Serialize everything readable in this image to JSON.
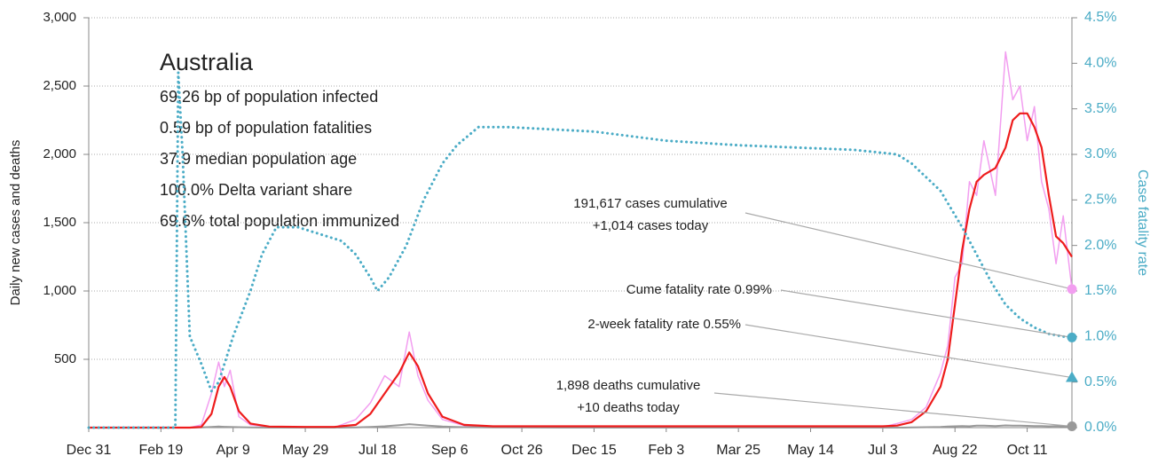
{
  "chart_data": {
    "type": "line",
    "title": "Australia",
    "info": [
      "69.26 bp of population infected",
      "0.59 bp of population fatalities",
      "37.9 median population age",
      "100.0% Delta variant share",
      "69.6% total population immunized"
    ],
    "ylabel": "Daily new cases and deaths",
    "y2label": "Case fatality rate",
    "xlim": [
      0,
      681
    ],
    "xticks": [
      {
        "value": 0,
        "label": "Dec 31"
      },
      {
        "value": 50,
        "label": "Feb 19"
      },
      {
        "value": 100,
        "label": "Apr 9"
      },
      {
        "value": 150,
        "label": "May 29"
      },
      {
        "value": 200,
        "label": "Jul 18"
      },
      {
        "value": 250,
        "label": "Sep 6"
      },
      {
        "value": 300,
        "label": "Oct 26"
      },
      {
        "value": 350,
        "label": "Dec 15"
      },
      {
        "value": 400,
        "label": "Feb 3"
      },
      {
        "value": 450,
        "label": "Mar 25"
      },
      {
        "value": 500,
        "label": "May 14"
      },
      {
        "value": 550,
        "label": "Jul 3"
      },
      {
        "value": 600,
        "label": "Aug 22"
      },
      {
        "value": 650,
        "label": "Oct 11"
      }
    ],
    "ylim": [
      0,
      3000
    ],
    "yticks": [
      500,
      {
        "value": 1000,
        "label": "1,000"
      },
      {
        "value": 1500,
        "label": "1,500"
      },
      {
        "value": 2000,
        "label": "2,000"
      },
      {
        "value": 2500,
        "label": "2,500"
      },
      {
        "value": 3000,
        "label": "3,000"
      }
    ],
    "y2lim": [
      0,
      4.5
    ],
    "y2ticks": [
      {
        "value": 0,
        "label": "0.0%"
      },
      {
        "value": 0.5,
        "label": "0.5%"
      },
      {
        "value": 1,
        "label": "1.0%"
      },
      {
        "value": 1.5,
        "label": "1.5%"
      },
      {
        "value": 2,
        "label": "2.0%"
      },
      {
        "value": 2.5,
        "label": "2.5%"
      },
      {
        "value": 3,
        "label": "3.0%"
      },
      {
        "value": 3.5,
        "label": "3.5%"
      },
      {
        "value": 4,
        "label": "4.0%"
      },
      {
        "value": 4.5,
        "label": "4.5%"
      }
    ],
    "grid": true,
    "series": [
      {
        "color": "#f29ef0",
        "width": 1.5,
        "dash": false,
        "axis": "y",
        "x": [
          0,
          70,
          78,
          85,
          90,
          94,
          98,
          104,
          112,
          125,
          150,
          170,
          185,
          195,
          205,
          215,
          222,
          228,
          235,
          245,
          260,
          280,
          350,
          450,
          550,
          560,
          570,
          580,
          590,
          595,
          600,
          605,
          610,
          615,
          620,
          628,
          635,
          640,
          645,
          650,
          655,
          660,
          665,
          670,
          675,
          681
        ],
        "values": [
          0,
          0,
          20,
          250,
          480,
          300,
          420,
          80,
          20,
          5,
          5,
          0,
          60,
          180,
          380,
          300,
          700,
          380,
          200,
          60,
          15,
          5,
          5,
          10,
          5,
          30,
          60,
          150,
          400,
          600,
          1100,
          1200,
          1800,
          1700,
          2100,
          1700,
          2750,
          2400,
          2500,
          2100,
          2350,
          1800,
          1600,
          1200,
          1550,
          1014
        ]
      },
      {
        "color": "#999999",
        "width": 2,
        "dash": false,
        "axis": "y",
        "x": [
          0,
          70,
          78,
          85,
          90,
          94,
          98,
          104,
          112,
          125,
          150,
          170,
          185,
          195,
          205,
          215,
          222,
          228,
          235,
          245,
          260,
          280,
          350,
          450,
          550,
          560,
          570,
          580,
          590,
          595,
          600,
          605,
          610,
          615,
          620,
          628,
          635,
          640,
          645,
          650,
          655,
          660,
          665,
          670,
          675,
          681
        ],
        "values": [
          0,
          0,
          2,
          5,
          8,
          6,
          5,
          3,
          1,
          0,
          0,
          0,
          2,
          5,
          10,
          18,
          25,
          20,
          15,
          8,
          3,
          1,
          0,
          0,
          0,
          0,
          1,
          3,
          5,
          8,
          10,
          12,
          10,
          15,
          14,
          12,
          16,
          15,
          14,
          13,
          12,
          11,
          10,
          12,
          9,
          10
        ]
      },
      {
        "color": "#ee1c1c",
        "width": 2.2,
        "dash": false,
        "axis": "y",
        "x": [
          0,
          70,
          78,
          85,
          90,
          94,
          98,
          104,
          112,
          125,
          150,
          170,
          185,
          195,
          205,
          215,
          222,
          228,
          235,
          245,
          260,
          280,
          350,
          450,
          550,
          560,
          570,
          580,
          590,
          595,
          600,
          605,
          610,
          615,
          620,
          628,
          635,
          640,
          645,
          650,
          655,
          660,
          665,
          670,
          675,
          681
        ],
        "values": [
          0,
          0,
          5,
          100,
          300,
          370,
          300,
          120,
          30,
          8,
          5,
          5,
          20,
          100,
          250,
          400,
          550,
          450,
          250,
          80,
          20,
          10,
          10,
          10,
          10,
          15,
          40,
          120,
          300,
          500,
          900,
          1300,
          1600,
          1800,
          1850,
          1900,
          2050,
          2250,
          2300,
          2300,
          2200,
          2050,
          1700,
          1400,
          1350,
          1250
        ]
      },
      {
        "color": "#4bacc6",
        "width": 3,
        "dash": true,
        "axis": "y2",
        "x": [
          0,
          60,
          62,
          65,
          70,
          78,
          85,
          90,
          100,
          112,
          120,
          130,
          145,
          175,
          185,
          195,
          200,
          208,
          220,
          232,
          245,
          255,
          270,
          290,
          350,
          400,
          450,
          530,
          560,
          570,
          590,
          605,
          615,
          625,
          635,
          645,
          655,
          665,
          675,
          681
        ],
        "values": [
          0,
          0,
          3.9,
          3.0,
          1.0,
          0.7,
          0.4,
          0.5,
          1.0,
          1.5,
          1.9,
          2.2,
          2.2,
          2.05,
          1.9,
          1.65,
          1.5,
          1.65,
          2.0,
          2.5,
          2.9,
          3.1,
          3.3,
          3.3,
          3.25,
          3.15,
          3.1,
          3.05,
          3.0,
          2.9,
          2.6,
          2.2,
          1.9,
          1.6,
          1.35,
          1.2,
          1.1,
          1.03,
          1.0,
          0.99
        ]
      }
    ],
    "annotations": [
      {
        "lines": [
          "191,617 cases cumulative",
          "+1,014 cases today"
        ],
        "value": 1014,
        "axis": "y",
        "marker": "circle",
        "color": "#f29ef0"
      },
      {
        "lines": [
          "Cume fatality rate 0.99%"
        ],
        "value": 0.99,
        "axis": "y2",
        "marker": "circle",
        "color": "#4bacc6"
      },
      {
        "lines": [
          "2-week fatality rate 0.55%"
        ],
        "value": 0.55,
        "axis": "y2",
        "marker": "triangle",
        "color": "#4bacc6"
      },
      {
        "lines": [
          "1,898 deaths cumulative",
          "+10 deaths today"
        ],
        "value": 10,
        "axis": "y",
        "marker": "circle",
        "color": "#999999"
      }
    ]
  }
}
